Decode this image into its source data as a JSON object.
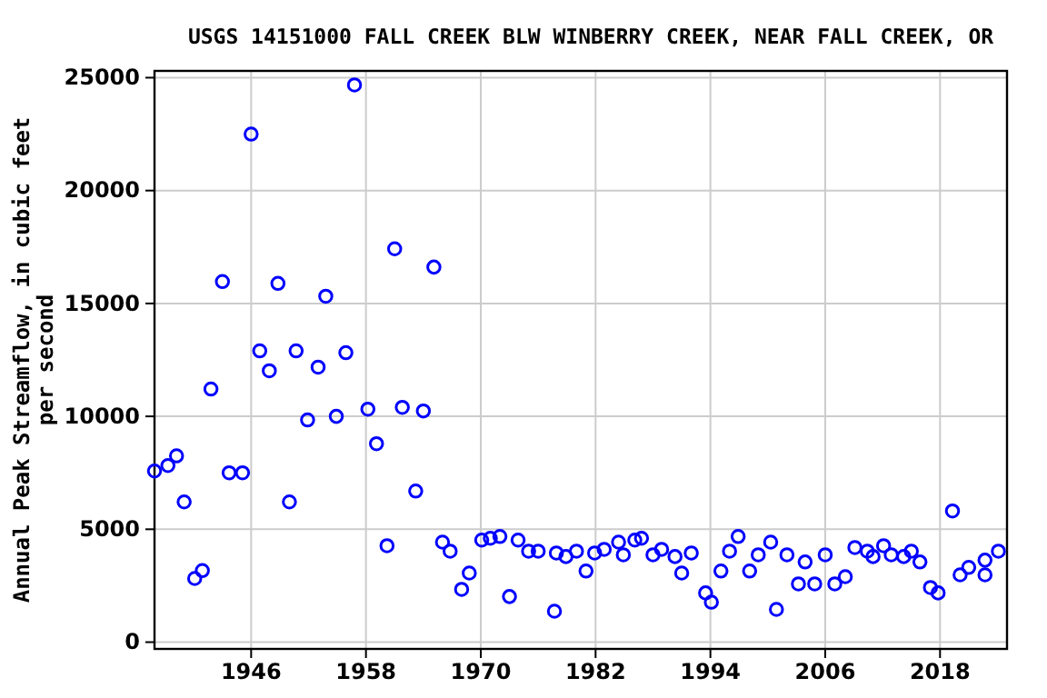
{
  "chart_data": {
    "type": "scatter",
    "title": "USGS 14151000 FALL CREEK BLW WINBERRY CREEK, NEAR FALL CREEK, OR",
    "ylabel": "Annual Peak Streamflow, in cubic feet\nper second",
    "x": [
      1935.9,
      1937.3,
      1938.2,
      1939.0,
      1940.1,
      1940.9,
      1941.8,
      1943.0,
      1943.7,
      1945.1,
      1946.0,
      1946.9,
      1947.9,
      1948.8,
      1950.0,
      1950.7,
      1951.9,
      1953.0,
      1953.8,
      1954.9,
      1955.9,
      1956.8,
      1958.2,
      1959.1,
      1960.2,
      1961.0,
      1961.8,
      1963.2,
      1964.0,
      1965.1,
      1966.0,
      1966.8,
      1968.0,
      1968.8,
      1970.1,
      1971.0,
      1972.0,
      1973.0,
      1973.9,
      1975.0,
      1976.0,
      1977.7,
      1977.9,
      1978.9,
      1980.0,
      1981.0,
      1981.9,
      1982.9,
      1984.4,
      1984.9,
      1986.1,
      1986.8,
      1988.0,
      1988.9,
      1990.3,
      1991.0,
      1992.0,
      1993.5,
      1994.1,
      1995.1,
      1996.0,
      1996.9,
      1998.1,
      1999.0,
      2000.3,
      2000.9,
      2002.0,
      2003.2,
      2003.9,
      2004.9,
      2006.0,
      2007.0,
      2008.1,
      2009.1,
      2010.4,
      2011.0,
      2012.1,
      2012.9,
      2014.2,
      2015.0,
      2015.9,
      2017.0,
      2017.8,
      2019.3,
      2020.1,
      2021.0,
      2022.7,
      2022.7,
      2024.1
    ],
    "series": [
      {
        "color": "#0000ff",
        "values": [
          7580,
          7820,
          8250,
          6210,
          2820,
          3170,
          11210,
          15970,
          7500,
          7500,
          22500,
          12900,
          12020,
          15890,
          6210,
          12900,
          9840,
          12180,
          15320,
          10000,
          12820,
          24680,
          10320,
          8790,
          4270,
          17420,
          10400,
          6690,
          10240,
          16610,
          4430,
          4030,
          2340,
          3060,
          4520,
          4600,
          4680,
          2020,
          4520,
          4030,
          4030,
          1370,
          3950,
          3790,
          4030,
          3150,
          3950,
          4110,
          4430,
          3870,
          4520,
          4600,
          3870,
          4110,
          3790,
          3060,
          3950,
          2180,
          1770,
          3150,
          4030,
          4680,
          3150,
          3870,
          4430,
          1450,
          3870,
          2580,
          3550,
          2580,
          3870,
          2580,
          2900,
          4190,
          4030,
          3790,
          4270,
          3870,
          3790,
          4030,
          3550,
          2420,
          2180,
          5810,
          2980,
          3310,
          3630,
          2980,
          4030
        ]
      }
    ],
    "xlim": [
      1935.9,
      2025
    ],
    "xticks": [
      1946,
      1958,
      1970,
      1982,
      1994,
      2006,
      2018
    ],
    "ylim": [
      -300,
      25300
    ],
    "yticks": [
      0,
      5000,
      10000,
      15000,
      20000,
      25000
    ],
    "grid": true,
    "marker": "circle"
  }
}
